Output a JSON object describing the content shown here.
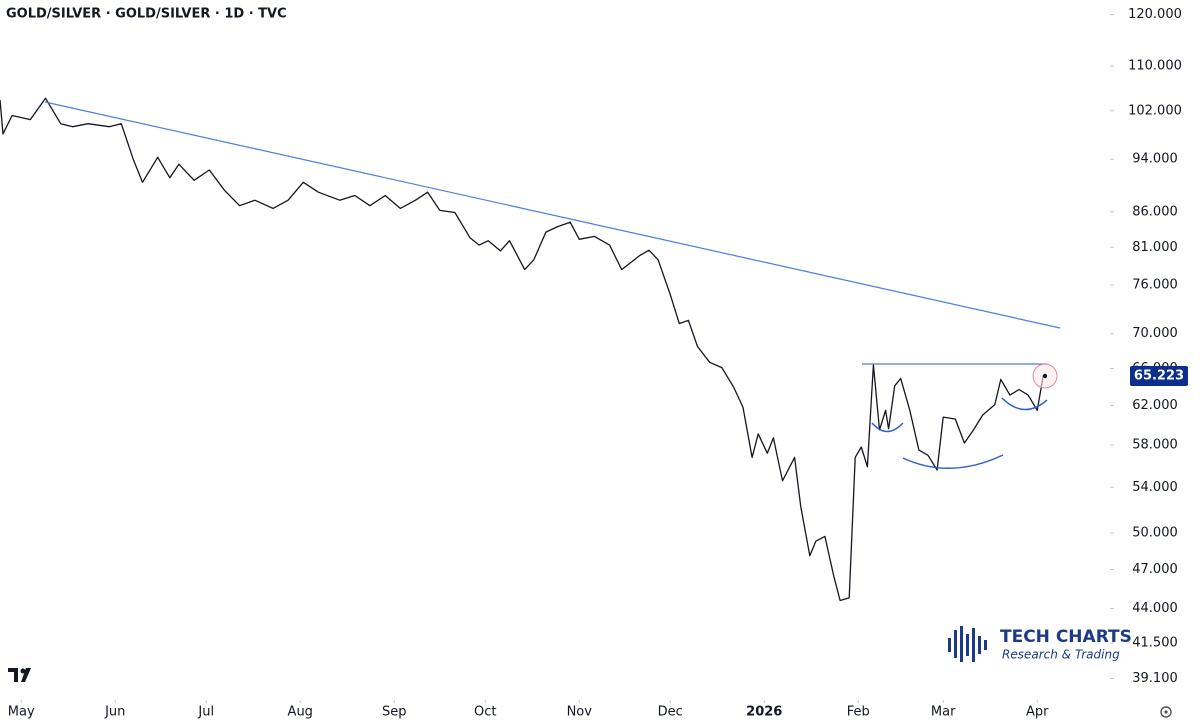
{
  "chart_data": {
    "type": "line",
    "title": "GOLD/SILVER · GOLD/SILVER · 1D · TVC",
    "log_scale": true,
    "color": "#131722",
    "xlim": [
      -7,
      359
    ],
    "ylim": [
      37.7,
      123
    ],
    "xticks": [
      {
        "value": 0,
        "label": "May"
      },
      {
        "value": 31,
        "label": "Jun"
      },
      {
        "value": 61,
        "label": "Jul"
      },
      {
        "value": 92,
        "label": "Aug"
      },
      {
        "value": 123,
        "label": "Sep"
      },
      {
        "value": 153,
        "label": "Oct"
      },
      {
        "value": 184,
        "label": "Nov"
      },
      {
        "value": 214,
        "label": "Dec"
      },
      {
        "value": 245,
        "label": "2026"
      },
      {
        "value": 276,
        "label": "Feb"
      },
      {
        "value": 304,
        "label": "Mar"
      },
      {
        "value": 335,
        "label": "Apr"
      }
    ],
    "yticks": [
      {
        "value": 120,
        "label": "120.000"
      },
      {
        "value": 110,
        "label": "110.000"
      },
      {
        "value": 102,
        "label": "102.000"
      },
      {
        "value": 94,
        "label": "94.000"
      },
      {
        "value": 86,
        "label": "86.000"
      },
      {
        "value": 81,
        "label": "81.000"
      },
      {
        "value": 76,
        "label": "76.000"
      },
      {
        "value": 70,
        "label": "70.000"
      },
      {
        "value": 66,
        "label": "66.000"
      },
      {
        "value": 62,
        "label": "62.000"
      },
      {
        "value": 58,
        "label": "58.000"
      },
      {
        "value": 54,
        "label": "54.000"
      },
      {
        "value": 50,
        "label": "50.000"
      },
      {
        "value": 47,
        "label": "47.000"
      },
      {
        "value": 44,
        "label": "44.000"
      },
      {
        "value": 41.5,
        "label": "41.500"
      },
      {
        "value": 39.1,
        "label": "39.100"
      }
    ],
    "x": [
      -7,
      -6,
      -3,
      3,
      8,
      13,
      17,
      22,
      29,
      33,
      37,
      40,
      45,
      49,
      52,
      57,
      62,
      67,
      72,
      77,
      83,
      88,
      93,
      98,
      105,
      110,
      115,
      120,
      125,
      130,
      134,
      138,
      143,
      148,
      151,
      154,
      158,
      161,
      166,
      169,
      173,
      177,
      181,
      184,
      189,
      194,
      198,
      204,
      207,
      210,
      214,
      217,
      220,
      223,
      227,
      231,
      235,
      238,
      241,
      243,
      246,
      248,
      251,
      255,
      257,
      260,
      262,
      265,
      268,
      270,
      273,
      275,
      277,
      279,
      281,
      283,
      285,
      286,
      288,
      290,
      293,
      296,
      299,
      302,
      304,
      308,
      311,
      314,
      317,
      321,
      323,
      326,
      329,
      332,
      335,
      337
    ],
    "series": [
      {
        "name": "GOLD/SILVER",
        "values": [
          103.9,
          98.1,
          101.2,
          100.5,
          104.2,
          99.8,
          99.3,
          99.8,
          99.3,
          99.8,
          93.9,
          90.4,
          94.3,
          91.1,
          93.2,
          90.7,
          92.3,
          89.2,
          86.9,
          87.7,
          86.5,
          87.7,
          90.4,
          88.9,
          87.7,
          88.4,
          86.9,
          88.4,
          86.5,
          87.7,
          88.9,
          86.2,
          85.9,
          82.3,
          81.3,
          81.9,
          80.5,
          81.9,
          78.0,
          79.3,
          83.1,
          83.9,
          84.5,
          82.1,
          82.5,
          81.3,
          78.0,
          79.9,
          80.6,
          79.3,
          74.8,
          71.2,
          71.6,
          68.5,
          66.7,
          66.1,
          63.9,
          61.8,
          56.8,
          59.1,
          57.2,
          58.7,
          54.6,
          56.8,
          52.3,
          48.1,
          49.3,
          49.7,
          46.4,
          44.6,
          44.8,
          56.8,
          57.8,
          55.9,
          66.4,
          59.5,
          61.5,
          59.6,
          64.1,
          64.9,
          61.5,
          57.5,
          57.0,
          55.6,
          60.8,
          60.6,
          58.2,
          59.5,
          61.0,
          62.1,
          64.8,
          63.1,
          63.7,
          63.1,
          61.5,
          65.223
        ]
      }
    ],
    "price_label": "65.223",
    "logo": {
      "name": "TECH CHARTS",
      "tagline": "Research & Trading"
    }
  }
}
